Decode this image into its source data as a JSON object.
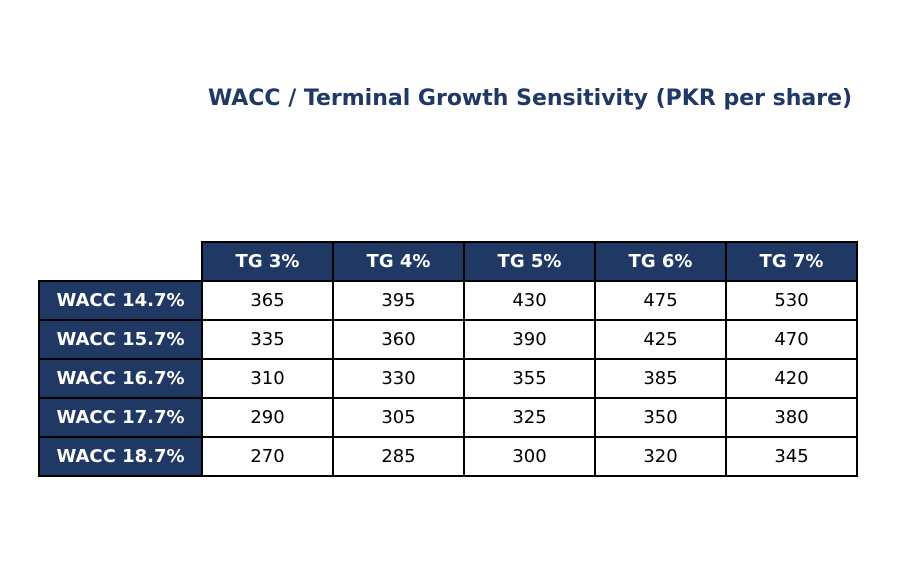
{
  "chart_data": {
    "type": "table",
    "title": "WACC / Terminal Growth Sensitivity (PKR per share)",
    "columns": [
      "TG 3%",
      "TG 4%",
      "TG 5%",
      "TG 6%",
      "TG 7%"
    ],
    "rows": [
      {
        "label": "WACC 14.7%",
        "values": [
          "365",
          "395",
          "430",
          "475",
          "530"
        ]
      },
      {
        "label": "WACC 15.7%",
        "values": [
          "335",
          "360",
          "390",
          "425",
          "470"
        ]
      },
      {
        "label": "WACC 16.7%",
        "values": [
          "310",
          "330",
          "355",
          "385",
          "420"
        ]
      },
      {
        "label": "WACC 17.7%",
        "values": [
          "290",
          "305",
          "325",
          "350",
          "380"
        ]
      },
      {
        "label": "WACC 18.7%",
        "values": [
          "270",
          "285",
          "300",
          "320",
          "345"
        ]
      }
    ]
  },
  "colors": {
    "header_fill": "#1f3864",
    "header_text": "#ffffff",
    "title_text": "#1f3864",
    "cell_fill": "#ffffff",
    "border": "#000000"
  }
}
